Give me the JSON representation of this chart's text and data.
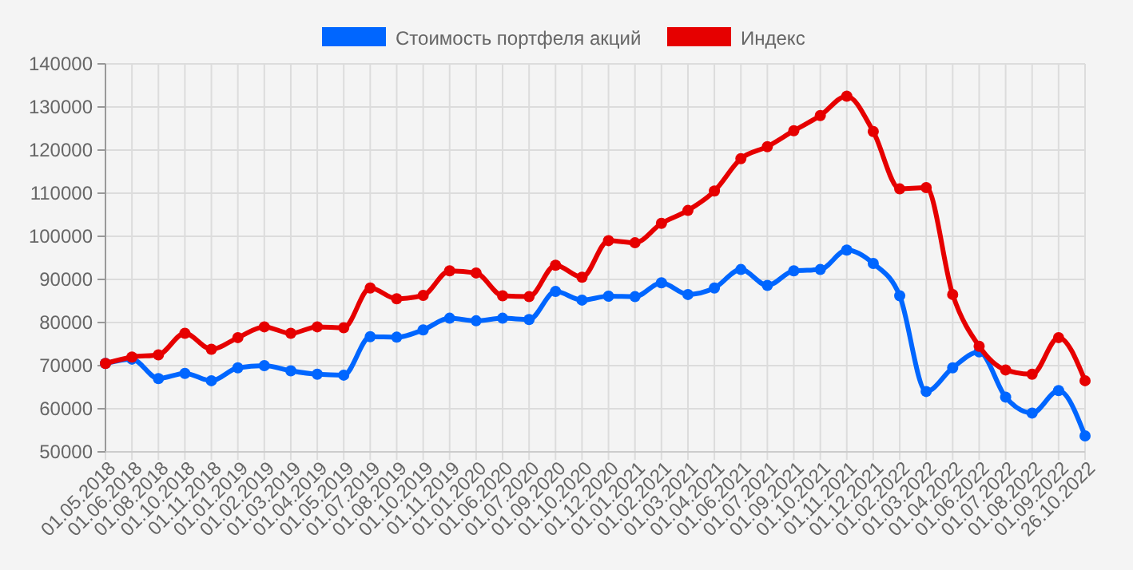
{
  "chart_data": {
    "type": "line",
    "categories": [
      "01.05.2018",
      "01.06.2018",
      "01.08.2018",
      "01.10.2018",
      "01.11.2018",
      "01.01.2019",
      "01.02.2019",
      "01.03.2019",
      "01.04.2019",
      "01.05.2019",
      "01.07.2019",
      "01.08.2019",
      "01.10.2019",
      "01.11.2019",
      "01.01.2020",
      "01.06.2020",
      "01.07.2020",
      "01.09.2020",
      "01.10.2020",
      "01.12.2020",
      "01.01.2021",
      "01.02.2021",
      "01.03.2021",
      "01.04.2021",
      "01.06.2021",
      "01.07.2021",
      "01.09.2021",
      "01.10.2021",
      "01.11.2021",
      "01.12.2021",
      "01.02.2022",
      "01.03.2022",
      "01.04.2022",
      "01.06.2022",
      "01.07.2022",
      "01.08.2022",
      "01.09.2022",
      "26.10.2022"
    ],
    "series": [
      {
        "name": "Стоимость портфеля акций",
        "color": "#0066ff",
        "values": [
          70500,
          71500,
          67000,
          68200,
          66500,
          69500,
          70000,
          68800,
          68000,
          67800,
          76700,
          76600,
          78300,
          81000,
          80400,
          81000,
          80700,
          87200,
          85200,
          86100,
          86000,
          89200,
          86500,
          88000,
          92300,
          88600,
          92000,
          92300,
          96800,
          93700,
          86200,
          64000,
          69500,
          73200,
          62700,
          59000,
          64200,
          53700
        ]
      },
      {
        "name": "Индекс",
        "color": "#e60000",
        "values": [
          70500,
          72000,
          72500,
          77500,
          73800,
          76500,
          79000,
          77500,
          79000,
          78800,
          88000,
          85500,
          86300,
          92000,
          91500,
          86200,
          86000,
          93300,
          90500,
          99000,
          98500,
          103000,
          106000,
          110500,
          118000,
          120800,
          124500,
          128000,
          132500,
          124300,
          111000,
          111300,
          86500,
          74500,
          69000,
          68000,
          76500,
          66500
        ]
      }
    ],
    "ylim": [
      50000,
      140000
    ],
    "yticks": [
      50000,
      60000,
      70000,
      80000,
      90000,
      100000,
      110000,
      120000,
      130000,
      140000
    ],
    "grid": true,
    "legend": "top",
    "marker": "circle",
    "line_style": "solid"
  }
}
